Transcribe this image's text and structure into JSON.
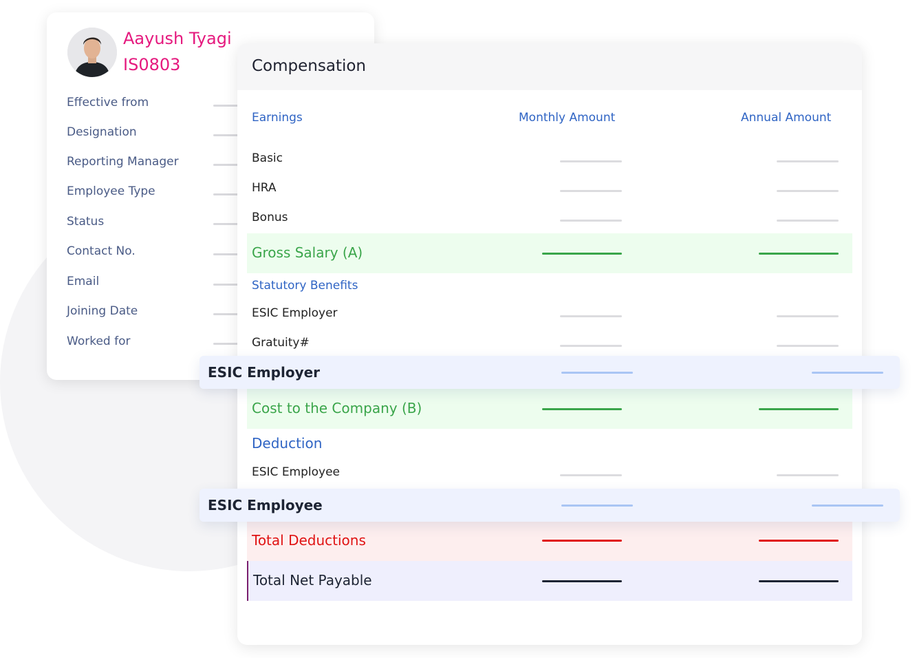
{
  "profile": {
    "name": "Aayush Tyagi",
    "employee_id": "IS0803",
    "fields": [
      "Effective from",
      "Designation",
      "Reporting Manager",
      "Employee Type",
      "Status",
      "Contact No.",
      "Email",
      "Joining Date",
      "Worked for"
    ]
  },
  "compensation": {
    "title": "Compensation",
    "columns": {
      "earnings": "Earnings",
      "monthly": "Monthly Amount",
      "annual": "Annual Amount"
    },
    "earnings_rows": [
      "Basic",
      "HRA",
      "Bonus"
    ],
    "gross_salary": "Gross Salary (A)",
    "statutory_benefits": "Statutory Benefits",
    "statutory_rows": [
      "ESIC Employer",
      "Gratuity#"
    ],
    "floating_employer": "ESIC Employer",
    "cost_to_company": "Cost to the Company (B)",
    "deduction": "Deduction",
    "deduction_rows": [
      "ESIC Employee"
    ],
    "floating_employee": "ESIC Employee",
    "total_deductions": "Total Deductions",
    "total_net_payable": "Total Net Payable"
  },
  "colors": {
    "accent_pink": "#e5197e",
    "accent_blue": "#2f64c4",
    "positive_green": "#3aa54a",
    "negative_red": "#e01313"
  }
}
